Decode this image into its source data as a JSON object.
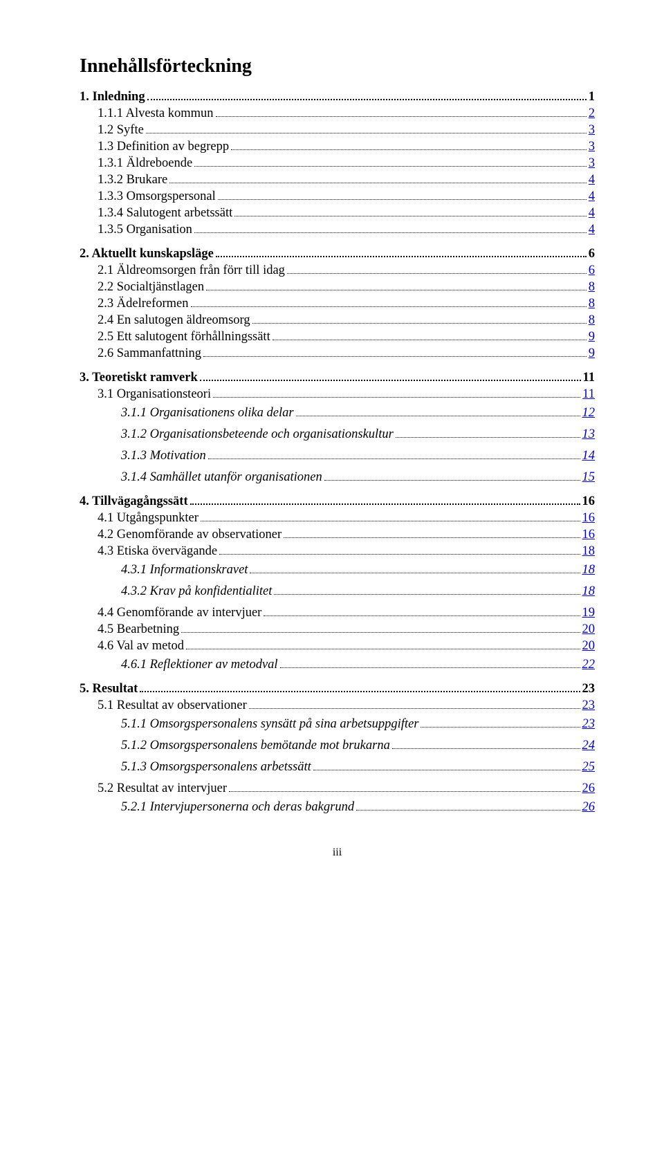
{
  "title": "Innehållsförteckning",
  "colors": {
    "text": "#000000",
    "link": "#0000cc",
    "background": "#ffffff"
  },
  "footer": "iii",
  "sections": [
    {
      "head": {
        "label": "1. Inledning",
        "page": "1"
      },
      "items": [
        {
          "label": "1.1.1 Alvesta kommun",
          "page": "2",
          "indent": 1
        },
        {
          "label": "1.2 Syfte",
          "page": "3",
          "indent": 1
        },
        {
          "label": "1.3 Definition av begrepp",
          "page": "3",
          "indent": 1
        },
        {
          "label": "1.3.1 Äldreboende",
          "page": "3",
          "indent": 1
        },
        {
          "label": "1.3.2 Brukare",
          "page": "4",
          "indent": 1
        },
        {
          "label": "1.3.3 Omsorgspersonal",
          "page": "4",
          "indent": 1
        },
        {
          "label": "1.3.4 Salutogent arbetssätt",
          "page": "4",
          "indent": 1
        },
        {
          "label": "1.3.5 Organisation",
          "page": "4",
          "indent": 1
        }
      ]
    },
    {
      "head": {
        "label": "2. Aktuellt kunskapsläge",
        "page": "6"
      },
      "items": [
        {
          "label": "2.1 Äldreomsorgen från förr till idag",
          "page": "6",
          "indent": 1
        },
        {
          "label": "2.2 Socialtjänstlagen",
          "page": "8",
          "indent": 1
        },
        {
          "label": "2.3 Ädelreformen",
          "page": "8",
          "indent": 1
        },
        {
          "label": "2.4 En salutogen äldreomsorg",
          "page": "8",
          "indent": 1
        },
        {
          "label": "2.5 Ett salutogent förhållningssätt",
          "page": "9",
          "indent": 1
        },
        {
          "label": "2.6 Sammanfattning",
          "page": "9",
          "indent": 1
        }
      ]
    },
    {
      "head": {
        "label": "3. Teoretiskt ramverk",
        "page": "11"
      },
      "items": [
        {
          "label": "3.1 Organisationsteori",
          "page": "11",
          "indent": 1
        },
        {
          "label": "3.1.1 Organisationens olika delar",
          "page": "12",
          "indent": 2,
          "italic": true,
          "spaced": true
        },
        {
          "label": "3.1.2 Organisationsbeteende och organisationskultur",
          "page": "13",
          "indent": 2,
          "italic": true,
          "spaced": true
        },
        {
          "label": "3.1.3 Motivation",
          "page": "14",
          "indent": 2,
          "italic": true,
          "spaced": true
        },
        {
          "label": "3.1.4 Samhället utanför organisationen",
          "page": "15",
          "indent": 2,
          "italic": true,
          "spaced": true
        }
      ]
    },
    {
      "head": {
        "label": "4. Tillvägagångssätt",
        "page": "16"
      },
      "items": [
        {
          "label": "4.1 Utgångspunkter",
          "page": "16",
          "indent": 1
        },
        {
          "label": "4.2 Genomförande av observationer",
          "page": "16",
          "indent": 1
        },
        {
          "label": "4.3 Etiska övervägande",
          "page": "18",
          "indent": 1
        },
        {
          "label": "4.3.1 Informationskravet",
          "page": "18",
          "indent": 2,
          "italic": true,
          "spaced": true
        },
        {
          "label": "4.3.2 Krav på konfidentialitet",
          "page": "18",
          "indent": 2,
          "italic": true,
          "spaced": true
        },
        {
          "label": "4.4 Genomförande av intervjuer",
          "page": "19",
          "indent": 1
        },
        {
          "label": "4.5 Bearbetning",
          "page": "20",
          "indent": 1
        },
        {
          "label": "4.6 Val av metod",
          "page": "20",
          "indent": 1
        },
        {
          "label": "4.6.1 Reflektioner av metodval",
          "page": "22",
          "indent": 2,
          "italic": true,
          "spaced": true
        }
      ]
    },
    {
      "head": {
        "label": "5. Resultat",
        "page": "23"
      },
      "items": [
        {
          "label": "5.1 Resultat av observationer",
          "page": "23",
          "indent": 1
        },
        {
          "label": "5.1.1 Omsorgspersonalens synsätt på sina arbetsuppgifter",
          "page": "23",
          "indent": 2,
          "italic": true,
          "spaced": true
        },
        {
          "label": "5.1.2 Omsorgspersonalens bemötande mot brukarna",
          "page": "24",
          "indent": 2,
          "italic": true,
          "spaced": true
        },
        {
          "label": "5.1.3 Omsorgspersonalens arbetssätt",
          "page": "25",
          "indent": 2,
          "italic": true,
          "spaced": true
        },
        {
          "label": "5.2 Resultat av intervjuer",
          "page": "26",
          "indent": 1
        },
        {
          "label": "5.2.1 Intervjupersonerna och deras bakgrund",
          "page": "26",
          "indent": 2,
          "italic": true,
          "spaced": true
        }
      ]
    }
  ]
}
